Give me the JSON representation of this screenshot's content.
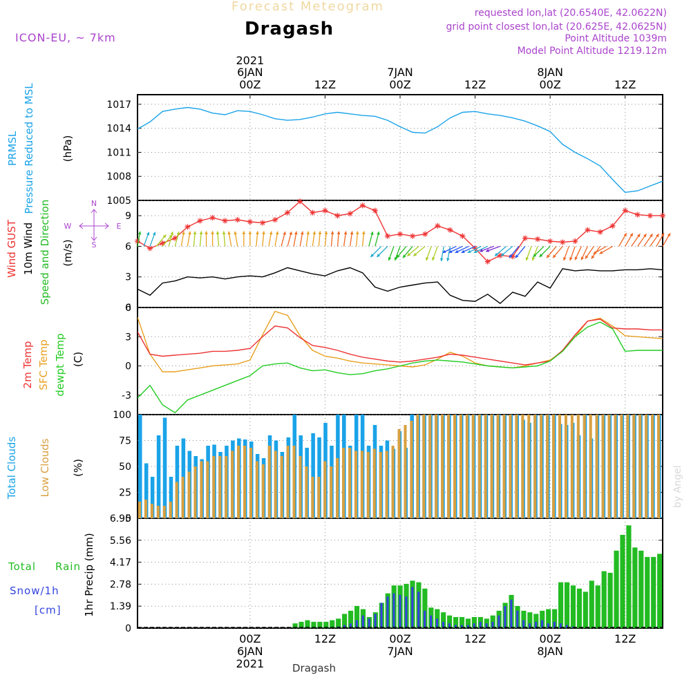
{
  "header": {
    "title": "Dragash",
    "faded_title": "Forecast Meteogram",
    "model": "ICON-EU, ~ 7km",
    "requested": "requested lon,lat (20.6540E, 42.0622N)",
    "closest": "grid point closest lon,lat (20.625E, 42.0625N)",
    "point_alt": "Point Altitude 1039m",
    "model_alt": "Model Point Altitude 1219.12m",
    "footer": "Dragash",
    "credit": "by Angel"
  },
  "colors": {
    "pressure": "#1aa3e8",
    "gust": "#ee3333",
    "wind": "#000000",
    "windlabel": "#22bb22",
    "temp2m": "#ee3333",
    "sfc": "#e8a020",
    "dew": "#22cc22",
    "total_cloud": "#1aa3e8",
    "low_cloud": "#d8a040",
    "rain": "#22bb22",
    "snow": "#3344dd",
    "meta": "#aa44cc",
    "grid": "#888888"
  },
  "time_axis": {
    "top": [
      {
        "t": 18,
        "label": "00Z",
        "date": "6JAN",
        "year": "2021"
      },
      {
        "t": 30,
        "label": "12Z",
        "date": "",
        "year": ""
      },
      {
        "t": 42,
        "label": "00Z",
        "date": "7JAN",
        "year": ""
      },
      {
        "t": 54,
        "label": "12Z",
        "date": "",
        "year": ""
      },
      {
        "t": 66,
        "label": "00Z",
        "date": "8JAN",
        "year": ""
      },
      {
        "t": 78,
        "label": "12Z",
        "date": "",
        "year": ""
      }
    ],
    "bottom": [
      {
        "t": 18,
        "label": "00Z",
        "date": "6JAN",
        "year": "2021"
      },
      {
        "t": 30,
        "label": "12Z",
        "date": "",
        "year": ""
      },
      {
        "t": 42,
        "label": "00Z",
        "date": "7JAN",
        "year": ""
      },
      {
        "t": 54,
        "label": "12Z",
        "date": "",
        "year": ""
      },
      {
        "t": 66,
        "label": "00Z",
        "date": "8JAN",
        "year": ""
      },
      {
        "t": 78,
        "label": "12Z",
        "date": "",
        "year": ""
      }
    ]
  },
  "panels": {
    "pressure": {
      "labels": [
        "PRMSL",
        "Pressure Reduced to MSL",
        "(hPa)"
      ],
      "ticks": [
        "1017",
        "1014",
        "1011",
        "1008",
        "1005"
      ]
    },
    "wind": {
      "labels": [
        "Wind GUST",
        "10m Wind",
        "Speed and Direction",
        "(m/s)"
      ],
      "ticks": [
        "9",
        "6",
        "3",
        "0"
      ],
      "compass": {
        "n": "N",
        "s": "S",
        "w": "W",
        "e": "E"
      }
    },
    "temp": {
      "labels": [
        "2m Temp",
        "SFC Temp",
        "dewpt Temp",
        "(C)"
      ],
      "ticks": [
        "6",
        "3",
        "0",
        "-3"
      ]
    },
    "cloud": {
      "labels": [
        "Total Clouds",
        "Low Clouds",
        "(%)"
      ],
      "ticks": [
        "100",
        "75",
        "50",
        "25",
        "0"
      ]
    },
    "precip": {
      "labels": [
        "Total",
        "Rain",
        "Snow/1h",
        "[cm]",
        "1hr Precip (mm)"
      ],
      "ticks": [
        "6.95",
        "5.56",
        "4.17",
        "2.78",
        "1.39",
        "0"
      ]
    }
  },
  "chart_data": [
    {
      "type": "line",
      "title": "PRMSL Pressure Reduced to MSL",
      "ylabel": "hPa",
      "ylim": [
        1005,
        1018.2
      ],
      "x_hours": [
        0,
        2,
        4,
        6,
        8,
        10,
        12,
        14,
        16,
        18,
        20,
        22,
        24,
        26,
        28,
        30,
        32,
        34,
        36,
        38,
        40,
        42,
        44,
        46,
        48,
        50,
        52,
        54,
        56,
        58,
        60,
        62,
        64,
        66,
        68,
        70,
        72,
        74,
        76,
        78,
        80,
        82,
        84
      ],
      "series": [
        {
          "name": "PRMSL",
          "values": [
            1013.9,
            1014.8,
            1016.1,
            1016.4,
            1016.6,
            1016.4,
            1015.9,
            1015.7,
            1016.2,
            1016.1,
            1015.7,
            1015.2,
            1015.0,
            1015.1,
            1015.4,
            1015.8,
            1016.0,
            1015.8,
            1015.6,
            1015.5,
            1015.0,
            1014.2,
            1013.5,
            1013.4,
            1014.2,
            1015.3,
            1016.0,
            1016.1,
            1015.8,
            1015.6,
            1015.3,
            1014.9,
            1014.3,
            1013.6,
            1012.0,
            1011.0,
            1010.2,
            1009.3,
            1007.6,
            1006.0,
            1006.2,
            1006.8,
            1007.4
          ]
        }
      ]
    },
    {
      "type": "line",
      "title": "Wind GUST / 10m Wind Speed and Direction",
      "ylabel": "m/s",
      "ylim": [
        0,
        10.5
      ],
      "x_hours": [
        0,
        2,
        4,
        6,
        8,
        10,
        12,
        14,
        16,
        18,
        20,
        22,
        24,
        26,
        28,
        30,
        32,
        34,
        36,
        38,
        40,
        42,
        44,
        46,
        48,
        50,
        52,
        54,
        56,
        58,
        60,
        62,
        64,
        66,
        68,
        70,
        72,
        74,
        76,
        78,
        80,
        82,
        84
      ],
      "series": [
        {
          "name": "Wind GUST",
          "values": [
            6.5,
            5.8,
            6.3,
            6.8,
            7.9,
            8.5,
            8.8,
            8.5,
            8.6,
            8.4,
            8.3,
            8.6,
            9.3,
            10.4,
            9.3,
            9.5,
            9.0,
            9.2,
            10.0,
            9.5,
            7.0,
            7.2,
            7.0,
            7.2,
            8.0,
            7.6,
            7.0,
            5.8,
            4.5,
            5.1,
            5.0,
            6.8,
            6.7,
            6.5,
            6.4,
            6.5,
            7.6,
            7.4,
            8.0,
            9.5,
            9.1,
            9.0,
            9.0
          ]
        },
        {
          "name": "10m Wind",
          "values": [
            1.8,
            1.2,
            2.4,
            2.6,
            3.0,
            2.9,
            3.0,
            2.8,
            3.0,
            3.1,
            3.0,
            3.4,
            3.9,
            3.6,
            3.3,
            3.1,
            3.6,
            3.9,
            3.4,
            2.0,
            1.6,
            2.0,
            2.2,
            2.4,
            2.5,
            1.2,
            0.7,
            0.6,
            1.3,
            0.4,
            1.5,
            1.1,
            2.5,
            1.9,
            3.8,
            3.6,
            3.7,
            3.6,
            3.6,
            3.7,
            3.7,
            3.8,
            3.7
          ]
        }
      ],
      "direction_deg": [
        10,
        20,
        40,
        15,
        10,
        5,
        0,
        355,
        350,
        0,
        5,
        10,
        15,
        10,
        8,
        5,
        5,
        8,
        5,
        15,
        225,
        200,
        220,
        230,
        200,
        190,
        245,
        245,
        245,
        250,
        230,
        220,
        200,
        225,
        220,
        200,
        205,
        215,
        240,
        30,
        35,
        35,
        30
      ]
    },
    {
      "type": "line",
      "title": "2m Temp / SFC Temp / dewpt Temp",
      "ylabel": "C",
      "ylim": [
        -5,
        6
      ],
      "x_hours": [
        0,
        2,
        4,
        6,
        8,
        10,
        12,
        14,
        16,
        18,
        20,
        22,
        24,
        26,
        28,
        30,
        32,
        34,
        36,
        38,
        40,
        42,
        44,
        46,
        48,
        50,
        52,
        54,
        56,
        58,
        60,
        62,
        64,
        66,
        68,
        70,
        72,
        74,
        76,
        78,
        80,
        82,
        84
      ],
      "series": [
        {
          "name": "2m Temp",
          "values": [
            3.5,
            1.2,
            1.0,
            1.1,
            1.2,
            1.3,
            1.5,
            1.5,
            1.6,
            1.8,
            3.0,
            4.1,
            3.9,
            2.9,
            2.1,
            1.9,
            1.6,
            1.2,
            0.9,
            0.7,
            0.5,
            0.4,
            0.5,
            0.7,
            0.9,
            1.2,
            1.1,
            0.9,
            0.7,
            0.5,
            0.3,
            0.1,
            0.3,
            0.5,
            1.6,
            3.2,
            4.6,
            4.8,
            3.9,
            3.8,
            3.8,
            3.7,
            3.7
          ]
        },
        {
          "name": "SFC Temp",
          "values": [
            5.0,
            1.2,
            -0.6,
            -0.6,
            -0.4,
            -0.2,
            0.0,
            0.1,
            0.2,
            0.6,
            3.2,
            5.6,
            5.2,
            3.1,
            1.6,
            1.0,
            0.8,
            0.5,
            0.3,
            0.2,
            0.1,
            0.0,
            -0.1,
            0.1,
            0.7,
            1.4,
            1.0,
            0.3,
            0.0,
            -0.1,
            -0.2,
            0.0,
            0.3,
            0.6,
            1.5,
            3.0,
            4.6,
            4.9,
            4.1,
            3.1,
            3.0,
            2.9,
            2.8
          ]
        },
        {
          "name": "dewpt Temp",
          "values": [
            -3.3,
            -2.0,
            -4.0,
            -4.8,
            -3.5,
            -3.0,
            -2.5,
            -2.0,
            -1.5,
            -1.0,
            0.0,
            0.2,
            0.3,
            -0.2,
            -0.5,
            -0.4,
            -0.7,
            -0.9,
            -0.8,
            -0.5,
            -0.3,
            0.0,
            0.3,
            0.5,
            0.6,
            0.5,
            0.4,
            0.2,
            0.0,
            -0.1,
            -0.2,
            -0.1,
            0.0,
            0.5,
            1.5,
            3.0,
            4.0,
            4.5,
            3.8,
            1.5,
            1.6,
            1.6,
            1.6
          ]
        }
      ]
    },
    {
      "type": "bar",
      "title": "Total Clouds / Low Clouds",
      "ylabel": "%",
      "ylim": [
        0,
        100
      ],
      "x_hours": [
        0,
        1,
        2,
        3,
        4,
        5,
        6,
        7,
        8,
        9,
        10,
        11,
        12,
        13,
        14,
        15,
        16,
        17,
        18,
        19,
        20,
        21,
        22,
        23,
        24,
        25,
        26,
        27,
        28,
        29,
        30,
        31,
        32,
        33,
        34,
        35,
        36,
        37,
        38,
        39,
        40,
        41,
        42,
        43,
        44,
        45,
        46,
        47,
        48,
        49,
        50,
        51,
        52,
        53,
        54,
        55,
        56,
        57,
        58,
        59,
        60,
        61,
        62,
        63,
        64,
        65,
        66,
        67,
        68,
        69,
        70,
        71,
        72,
        73,
        74,
        75,
        76,
        77,
        78,
        79,
        80,
        81,
        82,
        83,
        84
      ],
      "series": [
        {
          "name": "Total Clouds",
          "values": [
            100,
            53,
            40,
            80,
            97,
            40,
            70,
            77,
            65,
            60,
            57,
            70,
            71,
            64,
            70,
            75,
            77,
            76,
            74,
            62,
            58,
            80,
            75,
            64,
            78,
            100,
            80,
            68,
            82,
            78,
            92,
            70,
            100,
            100,
            70,
            100,
            100,
            70,
            90,
            70,
            75,
            67,
            84,
            68,
            100,
            100,
            100,
            100,
            100,
            100,
            100,
            100,
            100,
            100,
            100,
            100,
            100,
            100,
            100,
            100,
            100,
            100,
            95,
            92,
            100,
            100,
            100,
            100,
            91,
            90,
            92,
            80,
            100,
            77,
            100,
            100,
            100,
            100,
            100,
            100,
            100,
            100,
            100,
            100,
            100
          ]
        },
        {
          "name": "Low Clouds",
          "values": [
            16,
            18,
            14,
            12,
            12,
            16,
            35,
            40,
            45,
            50,
            55,
            55,
            60,
            60,
            60,
            65,
            70,
            70,
            68,
            55,
            52,
            70,
            65,
            60,
            70,
            70,
            60,
            50,
            40,
            40,
            55,
            50,
            58,
            68,
            68,
            65,
            65,
            64,
            67,
            64,
            65,
            70,
            86,
            90,
            94,
            100,
            100,
            100,
            100,
            100,
            100,
            100,
            100,
            100,
            100,
            100,
            100,
            100,
            100,
            100,
            100,
            100,
            100,
            100,
            100,
            100,
            100,
            100,
            100,
            100,
            100,
            100,
            100,
            100,
            100,
            100,
            100,
            100,
            100,
            100,
            100,
            100,
            100,
            100,
            100
          ]
        }
      ]
    },
    {
      "type": "bar",
      "title": "1hr Precip",
      "ylabel": "mm",
      "ylim": [
        0,
        6.95
      ],
      "x_hours": [
        0,
        1,
        2,
        3,
        4,
        5,
        6,
        7,
        8,
        9,
        10,
        11,
        12,
        13,
        14,
        15,
        16,
        17,
        18,
        19,
        20,
        21,
        22,
        23,
        24,
        25,
        26,
        27,
        28,
        29,
        30,
        31,
        32,
        33,
        34,
        35,
        36,
        37,
        38,
        39,
        40,
        41,
        42,
        43,
        44,
        45,
        46,
        47,
        48,
        49,
        50,
        51,
        52,
        53,
        54,
        55,
        56,
        57,
        58,
        59,
        60,
        61,
        62,
        63,
        64,
        65,
        66,
        67,
        68,
        69,
        70,
        71,
        72,
        73,
        74,
        75,
        76,
        77,
        78,
        79,
        80,
        81,
        82,
        83,
        84
      ],
      "series": [
        {
          "name": "Total Rain",
          "values": [
            0,
            0,
            0,
            0,
            0,
            0,
            0,
            0,
            0,
            0,
            0,
            0,
            0,
            0,
            0,
            0,
            0,
            0,
            0,
            0,
            0,
            0,
            0,
            0,
            0,
            0.3,
            0.4,
            0.5,
            0.4,
            0.4,
            0.4,
            0.5,
            0.6,
            0.9,
            1.1,
            1.4,
            1.2,
            0.7,
            1.0,
            1.6,
            2.2,
            2.7,
            2.7,
            2.8,
            3.0,
            2.9,
            2.5,
            1.3,
            1.2,
            1.0,
            0.8,
            0.7,
            0.7,
            0.6,
            0.7,
            0.7,
            0.6,
            0.8,
            1.1,
            1.6,
            2.1,
            1.4,
            1.1,
            1.0,
            0.9,
            1.1,
            1.2,
            1.2,
            2.9,
            2.9,
            2.7,
            2.5,
            2.3,
            3.0,
            2.7,
            3.6,
            3.5,
            4.9,
            5.9,
            6.5,
            5.1,
            4.9,
            4.5,
            4.5,
            4.7
          ]
        },
        {
          "name": "Snow/1h",
          "values": [
            0,
            0,
            0,
            0,
            0,
            0,
            0,
            0,
            0,
            0,
            0,
            0,
            0,
            0,
            0,
            0,
            0,
            0,
            0,
            0,
            0,
            0,
            0,
            0,
            0,
            0,
            0,
            0,
            0,
            0,
            0,
            0,
            0.1,
            0.2,
            0.3,
            0.5,
            0.8,
            0.6,
            0.9,
            1.6,
            2.0,
            2.2,
            2.1,
            2.0,
            2.6,
            2.3,
            1.1,
            0.8,
            0.6,
            0.4,
            0.3,
            0.2,
            0.2,
            0.2,
            0.3,
            0.4,
            0.3,
            0.4,
            0.8,
            1.4,
            1.8,
            1.1,
            0.5,
            0.3,
            0.4,
            0.5,
            0.3,
            0.4,
            0.3,
            0.2,
            0.1,
            0,
            0,
            0,
            0,
            0,
            0,
            0,
            0,
            0,
            0,
            0,
            0,
            0,
            0
          ]
        }
      ]
    }
  ]
}
